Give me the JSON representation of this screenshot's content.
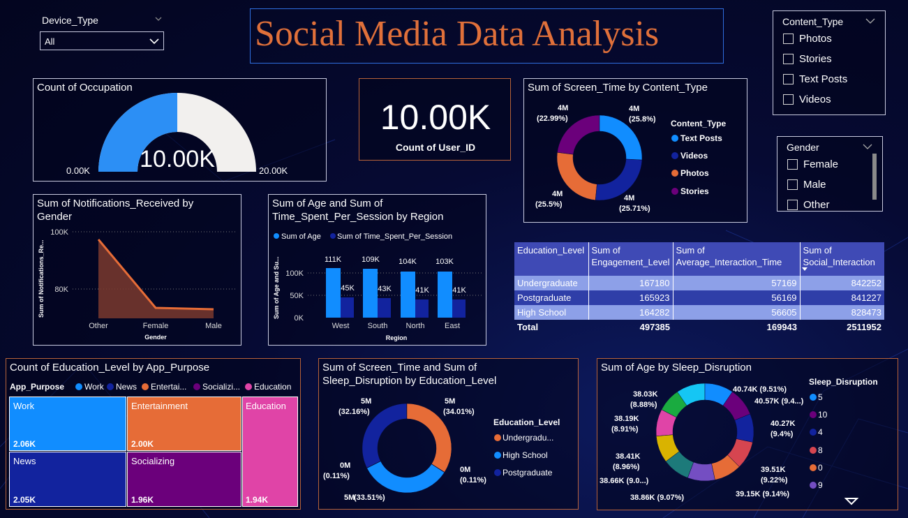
{
  "title": "Social Media Data Analysis",
  "device_slicer": {
    "label": "Device_Type",
    "value": "All"
  },
  "content_slicer": {
    "label": "Content_Type",
    "items": [
      "Photos",
      "Stories",
      "Text Posts",
      "Videos"
    ]
  },
  "gender_slicer": {
    "label": "Gender",
    "items": [
      "Female",
      "Male",
      "Other"
    ]
  },
  "gauge": {
    "title": "Count of Occupation",
    "value_label": "10.00K",
    "min_label": "0.00K",
    "max_label": "20.00K",
    "value": 10000,
    "max": 20000
  },
  "kpi": {
    "value": "10.00K",
    "label": "Count of User_ID"
  },
  "content_donut": {
    "title": "Sum of Screen_Time by Content_Type",
    "legend_title": "Content_Type",
    "legend": [
      "Text Posts",
      "Videos",
      "Photos",
      "Stories"
    ],
    "labels": [
      {
        "v": "4M",
        "p": "(25.8%)"
      },
      {
        "v": "4M",
        "p": "(25.71%)"
      },
      {
        "v": "4M",
        "p": "(25.5%)"
      },
      {
        "v": "4M",
        "p": "(22.99%)"
      }
    ]
  },
  "notif_chart": {
    "title_line1": "Sum of Notifications_Received by",
    "title_line2": "Gender",
    "ylabel": "Sum of Notifications_Re...",
    "xlabel": "Gender",
    "ticks": [
      "100K",
      "80K"
    ]
  },
  "region_chart": {
    "title_line1": "Sum of Age and Sum of",
    "title_line2": "Time_Spent_Per_Session by Region",
    "legend": [
      "Sum of Age",
      "Sum of Time_Spent_Per_Session"
    ],
    "ylabel": "Sum of Age and Su...",
    "xlabel": "Region",
    "ticks": [
      "100K",
      "50K",
      "0K"
    ],
    "bar_labels_a": [
      "111K",
      "109K",
      "104K",
      "103K"
    ],
    "bar_labels_b": [
      "45K",
      "43K",
      "41K",
      "41K"
    ]
  },
  "edu_table": {
    "headers": [
      "Education_Level",
      "Sum of Engagement_Level",
      "Sum of Average_Interaction_Time",
      "Sum of Social_Interaction"
    ],
    "rows": [
      [
        "Undergraduate",
        "167180",
        "57169",
        "842252"
      ],
      [
        "Postgraduate",
        "165923",
        "56169",
        "841227"
      ],
      [
        "High School",
        "164282",
        "56605",
        "828473"
      ]
    ],
    "total": [
      "Total",
      "497385",
      "169943",
      "2511952"
    ]
  },
  "treemap": {
    "title": "Count of Education_Level by App_Purpose",
    "legend_title": "App_Purpose",
    "legend": [
      "Work",
      "News",
      "Entertai...",
      "Socializi...",
      "Education"
    ],
    "tiles": [
      {
        "name": "Work",
        "value": "2.06K"
      },
      {
        "name": "Entertainment",
        "value": "2.00K"
      },
      {
        "name": "Education",
        "value": "1.94K"
      },
      {
        "name": "News",
        "value": "2.05K"
      },
      {
        "name": "Socializing",
        "value": "1.96K"
      }
    ]
  },
  "sleep_edu_donut": {
    "title_line1": "Sum of Screen_Time and Sum of",
    "title_line2": "Sleep_Disruption by Education_Level",
    "legend_title": "Education_Level",
    "legend": [
      "Undergradu...",
      "High School",
      "Postgraduate"
    ],
    "labels": [
      {
        "v": "5M",
        "p": "(34.01%)"
      },
      {
        "v": "0M",
        "p": "(0.11%)"
      },
      {
        "v": "5M",
        "p": "(33.51%)"
      },
      {
        "v": "0M",
        "p": "(0.11%)"
      },
      {
        "v": "5M",
        "p": "(32.16%)"
      }
    ]
  },
  "age_sleep_donut": {
    "title": "Sum of Age by Sleep_Disruption",
    "legend_title": "Sleep_Disruption",
    "legend": [
      "5",
      "10",
      "4",
      "8",
      "0",
      "9"
    ],
    "labels": [
      "40.74K (9.51%)",
      "40.57K (9.4...)",
      "40.27K",
      "(9.4%)",
      "39.51K",
      "(9.22%)",
      "39.15K (9.14%)",
      "38.86K (9.07%)",
      "38.66K (9.0...)",
      "38.41K",
      "(8.96%)",
      "38.19K",
      "(8.91%)",
      "38.03K",
      "(8.88%)"
    ]
  },
  "colors": {
    "blue": "#118dff",
    "navy": "#12239e",
    "orange": "#e66c37",
    "purple": "#6b007b",
    "pink": "#e044a7",
    "teal": "#1d7a7a",
    "olive": "#d9b300",
    "green": "#1aab40",
    "red": "#d64550",
    "lavender": "#744ec2",
    "cyan": "#15c6f4"
  }
}
